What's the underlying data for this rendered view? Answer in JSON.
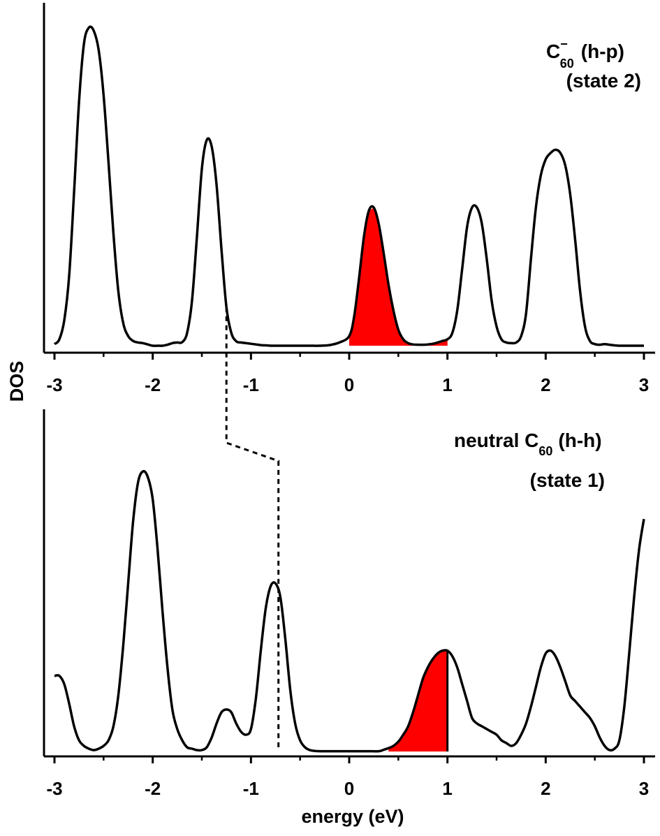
{
  "chart_data": [
    {
      "type": "line",
      "annotation": {
        "species_base": "C",
        "species_superscript": "−",
        "species_subscript": "60",
        "config": "(h-p)",
        "state": "(state 2)"
      },
      "x_ticks": [
        "-3",
        "-2",
        "-1",
        "0",
        "1",
        "2",
        "3"
      ],
      "xlim": [
        -3,
        3
      ],
      "ylim": [
        0,
        1
      ],
      "filled_region": {
        "x_from": 0.0,
        "x_to": 1.0,
        "color": "#ff0000"
      },
      "series": [
        {
          "x": [
            -3.0,
            -2.95,
            -2.9,
            -2.85,
            -2.8,
            -2.75,
            -2.7,
            -2.65,
            -2.6,
            -2.55,
            -2.5,
            -2.45,
            -2.4,
            -2.35,
            -2.3,
            -2.25,
            -2.2,
            -2.15,
            -2.1,
            -2.05,
            -2.0,
            -1.95,
            -1.9,
            -1.85,
            -1.8,
            -1.75,
            -1.7,
            -1.65,
            -1.6,
            -1.55,
            -1.5,
            -1.45,
            -1.4,
            -1.35,
            -1.3,
            -1.25,
            -1.2,
            -1.15,
            -1.1,
            -1.05,
            -1.0,
            -0.95,
            -0.9,
            -0.85,
            -0.8,
            -0.75,
            -0.7,
            -0.6,
            -0.5,
            -0.4,
            -0.3,
            -0.2,
            -0.1,
            0.0,
            0.05,
            0.1,
            0.15,
            0.2,
            0.25,
            0.3,
            0.35,
            0.4,
            0.45,
            0.5,
            0.55,
            0.6,
            0.65,
            0.7,
            0.75,
            0.8,
            0.85,
            0.9,
            0.95,
            1.0,
            1.05,
            1.1,
            1.15,
            1.2,
            1.25,
            1.3,
            1.35,
            1.4,
            1.45,
            1.5,
            1.55,
            1.6,
            1.65,
            1.7,
            1.75,
            1.8,
            1.85,
            1.9,
            1.95,
            2.0,
            2.05,
            2.1,
            2.15,
            2.2,
            2.25,
            2.3,
            2.35,
            2.4,
            2.45,
            2.5,
            2.55,
            2.6,
            2.65,
            2.7,
            2.75,
            2.8,
            2.85,
            2.9,
            2.95,
            3.0
          ],
          "y": [
            0.005,
            0.02,
            0.08,
            0.22,
            0.48,
            0.76,
            0.94,
            0.99,
            0.98,
            0.92,
            0.78,
            0.57,
            0.35,
            0.17,
            0.07,
            0.03,
            0.015,
            0.01,
            0.008,
            0.004,
            0.0,
            0.0,
            0.0,
            0.003,
            0.008,
            0.01,
            0.011,
            0.04,
            0.14,
            0.34,
            0.55,
            0.64,
            0.62,
            0.5,
            0.3,
            0.12,
            0.04,
            0.014,
            0.01,
            0.008,
            0.006,
            0.004,
            0.002,
            0.001,
            0.0,
            0.0,
            0.0,
            0.0,
            0.0,
            0.0,
            0.0,
            0.002,
            0.01,
            0.03,
            0.09,
            0.21,
            0.34,
            0.42,
            0.43,
            0.38,
            0.29,
            0.19,
            0.11,
            0.05,
            0.02,
            0.008,
            0.004,
            0.003,
            0.003,
            0.004,
            0.006,
            0.01,
            0.015,
            0.02,
            0.04,
            0.11,
            0.24,
            0.37,
            0.43,
            0.43,
            0.38,
            0.27,
            0.14,
            0.06,
            0.02,
            0.01,
            0.008,
            0.01,
            0.03,
            0.1,
            0.27,
            0.43,
            0.53,
            0.58,
            0.6,
            0.61,
            0.6,
            0.56,
            0.47,
            0.33,
            0.17,
            0.06,
            0.015,
            0.005,
            0.003,
            0.005,
            0.003,
            0.001,
            0.0,
            0.0,
            0.0,
            0.0,
            0.0,
            0.0
          ]
        }
      ]
    },
    {
      "type": "line",
      "annotation": {
        "prefix": "neutral C",
        "species_subscript": "60",
        "config": "(h-h)",
        "state": "(state 1)"
      },
      "x_ticks": [
        "-3",
        "-2",
        "-1",
        "0",
        "1",
        "2",
        "3"
      ],
      "xlim": [
        -3,
        3
      ],
      "ylim": [
        0,
        1
      ],
      "filled_region": {
        "x_from": 0.4,
        "x_to": 1.0,
        "color": "#ff0000"
      },
      "series": [
        {
          "x": [
            -3.0,
            -2.95,
            -2.9,
            -2.85,
            -2.8,
            -2.75,
            -2.7,
            -2.65,
            -2.6,
            -2.55,
            -2.5,
            -2.45,
            -2.4,
            -2.35,
            -2.3,
            -2.25,
            -2.2,
            -2.15,
            -2.1,
            -2.05,
            -2.0,
            -1.95,
            -1.9,
            -1.85,
            -1.8,
            -1.75,
            -1.7,
            -1.65,
            -1.6,
            -1.55,
            -1.5,
            -1.45,
            -1.4,
            -1.35,
            -1.3,
            -1.25,
            -1.2,
            -1.15,
            -1.1,
            -1.05,
            -1.0,
            -0.95,
            -0.9,
            -0.85,
            -0.8,
            -0.75,
            -0.7,
            -0.65,
            -0.6,
            -0.55,
            -0.5,
            -0.45,
            -0.4,
            -0.35,
            -0.3,
            -0.25,
            -0.2,
            -0.1,
            0.0,
            0.1,
            0.2,
            0.3,
            0.35,
            0.4,
            0.45,
            0.5,
            0.55,
            0.6,
            0.65,
            0.7,
            0.75,
            0.8,
            0.85,
            0.9,
            0.95,
            1.0,
            1.05,
            1.1,
            1.15,
            1.2,
            1.25,
            1.3,
            1.35,
            1.4,
            1.45,
            1.5,
            1.55,
            1.6,
            1.65,
            1.7,
            1.75,
            1.8,
            1.85,
            1.9,
            1.95,
            2.0,
            2.05,
            2.1,
            2.15,
            2.2,
            2.25,
            2.3,
            2.35,
            2.4,
            2.45,
            2.5,
            2.55,
            2.6,
            2.65,
            2.7,
            2.75,
            2.8,
            2.85,
            2.9,
            2.95,
            3.0
          ],
          "y": [
            0.27,
            0.27,
            0.24,
            0.17,
            0.09,
            0.04,
            0.02,
            0.01,
            0.005,
            0.01,
            0.02,
            0.04,
            0.09,
            0.2,
            0.38,
            0.6,
            0.82,
            0.96,
            1.0,
            0.98,
            0.9,
            0.72,
            0.5,
            0.3,
            0.15,
            0.08,
            0.04,
            0.015,
            0.01,
            0.005,
            0.005,
            0.015,
            0.05,
            0.1,
            0.14,
            0.15,
            0.14,
            0.1,
            0.07,
            0.06,
            0.08,
            0.19,
            0.36,
            0.51,
            0.59,
            0.6,
            0.55,
            0.4,
            0.22,
            0.1,
            0.04,
            0.015,
            0.005,
            0.002,
            0.001,
            0.001,
            0.001,
            0.001,
            0.001,
            0.001,
            0.001,
            0.001,
            0.006,
            0.012,
            0.02,
            0.035,
            0.06,
            0.09,
            0.14,
            0.2,
            0.26,
            0.3,
            0.33,
            0.35,
            0.36,
            0.36,
            0.34,
            0.3,
            0.24,
            0.18,
            0.12,
            0.1,
            0.09,
            0.08,
            0.07,
            0.06,
            0.04,
            0.03,
            0.02,
            0.03,
            0.06,
            0.1,
            0.16,
            0.23,
            0.3,
            0.35,
            0.36,
            0.34,
            0.3,
            0.25,
            0.2,
            0.18,
            0.16,
            0.14,
            0.12,
            0.09,
            0.05,
            0.02,
            0.005,
            0.01,
            0.04,
            0.16,
            0.35,
            0.55,
            0.72,
            0.83
          ]
        }
      ]
    }
  ],
  "shared": {
    "ylabel": "DOS",
    "xlabel": "energy (eV)",
    "line_color": "#000000",
    "fill_color": "#ff0000",
    "dashed_connector": {
      "from_peak_x": -1.25,
      "to_peak_x": -0.72
    }
  }
}
